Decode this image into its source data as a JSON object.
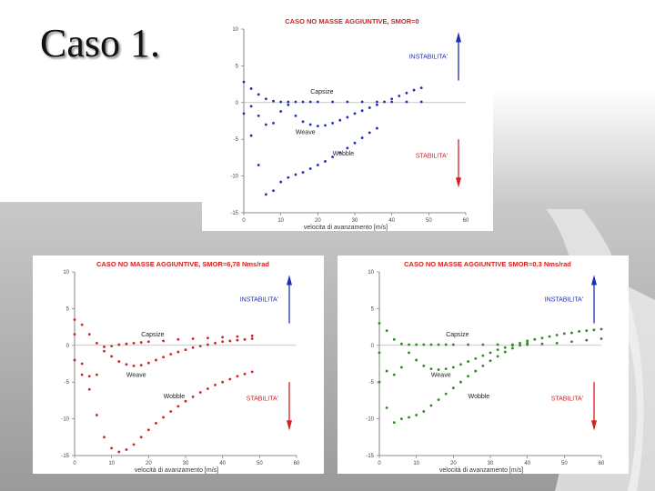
{
  "slide": {
    "title": "Caso 1."
  },
  "chart_data": [
    {
      "type": "scatter",
      "title": "CASO NO MASSE AGGIUNTIVE, SMOR=0",
      "xlabel": "velocita di avanzamento [m/s]",
      "xlim": [
        0,
        60
      ],
      "ylim": [
        -15,
        10
      ],
      "xticks": [
        0,
        10,
        20,
        30,
        40,
        50,
        60
      ],
      "yticks": [
        10,
        5,
        0,
        -5,
        -10,
        -15
      ],
      "color": "#1f2fb0",
      "annotations": {
        "unstable": "INSTABILITA'",
        "stable": "STABILITA'"
      },
      "series": [
        {
          "name": "Capsize",
          "x": [
            0,
            2,
            4,
            6,
            8,
            10,
            12,
            14,
            16,
            18,
            20,
            24,
            28,
            32,
            36,
            40,
            44,
            48
          ],
          "y": [
            2.8,
            1.9,
            1.1,
            0.5,
            0.2,
            0.1,
            0.1,
            0.1,
            0.1,
            0.1,
            0.1,
            0.1,
            0.1,
            0.1,
            0.1,
            0.1,
            0.1,
            0.1
          ]
        },
        {
          "name": "Weave",
          "x": [
            2,
            4,
            6,
            8,
            10,
            12,
            14,
            16,
            18,
            20,
            22,
            24,
            26,
            28,
            30,
            32,
            34,
            36,
            38,
            40,
            42,
            44,
            46,
            48
          ],
          "y": [
            -0.5,
            -1.8,
            -3.0,
            -2.8,
            -1.2,
            -0.3,
            -1.8,
            -2.6,
            -3.0,
            -3.2,
            -3.1,
            -2.8,
            -2.4,
            -2.0,
            -1.5,
            -1.1,
            -0.7,
            -0.3,
            0.1,
            0.5,
            0.9,
            1.3,
            1.7,
            2.0
          ]
        },
        {
          "name": "Wobble",
          "x": [
            0,
            2,
            4,
            6,
            8,
            10,
            12,
            14,
            16,
            18,
            20,
            22,
            24,
            26,
            28,
            30,
            32,
            34,
            36
          ],
          "y": [
            -1.5,
            -4.5,
            -8.5,
            -12.5,
            -12,
            -10.8,
            -10.2,
            -9.8,
            -9.5,
            -9.0,
            -8.5,
            -8.0,
            -7.4,
            -6.8,
            -6.2,
            -5.5,
            -4.8,
            -4.1,
            -3.5
          ]
        }
      ],
      "labels": {
        "capsize": "Capsize",
        "weave": "Weave",
        "wobble": "Wobble"
      }
    },
    {
      "type": "scatter",
      "title": "CASO NO MASSE AGGIUNTIVE, SMOR=6,78 Nms/rad",
      "xlabel": "velocità di avanzamento [m/s]",
      "xlim": [
        0,
        60
      ],
      "ylim": [
        -15,
        10
      ],
      "xticks": [
        0,
        10,
        20,
        30,
        40,
        50,
        60
      ],
      "yticks": [
        10,
        5,
        0,
        -5,
        -10,
        -15
      ],
      "color": "#d42020",
      "annotations": {
        "unstable": "INSTABILITA'",
        "stable": "STABILITA'"
      },
      "series": [
        {
          "name": "Capsize",
          "x": [
            0,
            2,
            4,
            6,
            8,
            10,
            12,
            14,
            16,
            18,
            20,
            24,
            28,
            32,
            36,
            40,
            44,
            48
          ],
          "y": [
            3.5,
            2.8,
            1.5,
            0.3,
            -0.2,
            -0.1,
            0.1,
            0.2,
            0.3,
            0.4,
            0.5,
            0.6,
            0.8,
            0.9,
            1.0,
            1.1,
            1.2,
            1.3
          ]
        },
        {
          "name": "Weave",
          "x": [
            0,
            2,
            4,
            6,
            8,
            10,
            12,
            14,
            16,
            18,
            20,
            22,
            24,
            26,
            28,
            30,
            32,
            34,
            36,
            38,
            40,
            42,
            44,
            46,
            48
          ],
          "y": [
            -2.0,
            -4.0,
            -4.2,
            -4.0,
            -0.8,
            -1.5,
            -2.2,
            -2.6,
            -2.8,
            -2.7,
            -2.4,
            -2.0,
            -1.6,
            -1.2,
            -0.9,
            -0.6,
            -0.3,
            -0.1,
            0.1,
            0.3,
            0.5,
            0.6,
            0.7,
            0.8,
            0.9
          ]
        },
        {
          "name": "Wobble",
          "x": [
            0,
            2,
            4,
            6,
            8,
            10,
            12,
            14,
            16,
            18,
            20,
            22,
            24,
            26,
            28,
            30,
            32,
            34,
            36,
            38,
            40,
            42,
            44,
            46,
            48
          ],
          "y": [
            1.5,
            -2.5,
            -6.0,
            -9.5,
            -12.5,
            -14.0,
            -14.5,
            -14.2,
            -13.5,
            -12.5,
            -11.5,
            -10.6,
            -9.8,
            -9.0,
            -8.3,
            -7.6,
            -7.0,
            -6.4,
            -5.9,
            -5.4,
            -5.0,
            -4.6,
            -4.2,
            -3.9,
            -3.6
          ]
        }
      ],
      "labels": {
        "capsize": "Capsize",
        "weave": "Weave",
        "wobble": "Wobble"
      }
    },
    {
      "type": "scatter",
      "title": "CASO NO MASSE AGGIUNTIVE SMOR=0.3 Nms/rad",
      "xlabel": "velocità di avanzamento [m/s]",
      "xlim": [
        0,
        60
      ],
      "ylim": [
        -15,
        10
      ],
      "xticks": [
        0,
        10,
        20,
        30,
        40,
        50,
        60
      ],
      "yticks": [
        10,
        5,
        0,
        -5,
        -10,
        -15
      ],
      "color": "#2a8a1c",
      "annotations": {
        "unstable": "INSTABILITA'",
        "stable": "STABILITA'"
      },
      "series": [
        {
          "name": "Capsize",
          "x": [
            0,
            2,
            4,
            6,
            8,
            10,
            12,
            14,
            16,
            18,
            20,
            24,
            28,
            32,
            36,
            40,
            44,
            48,
            52,
            56,
            60
          ],
          "y": [
            3.0,
            2.0,
            0.8,
            0.2,
            0.1,
            0.1,
            0.1,
            0.1,
            0.1,
            0.1,
            0.1,
            0.1,
            0.1,
            0.1,
            0.1,
            0.1,
            0.2,
            0.3,
            0.5,
            0.7,
            0.9
          ]
        },
        {
          "name": "Weave",
          "x": [
            0,
            2,
            4,
            6,
            8,
            10,
            12,
            14,
            16,
            18,
            20,
            22,
            24,
            26,
            28,
            30,
            32,
            34,
            36,
            38,
            40,
            42,
            44,
            46,
            48,
            50,
            52,
            54,
            56,
            58,
            60
          ],
          "y": [
            -1.0,
            -3.5,
            -4.0,
            -3.0,
            -1.0,
            -2.0,
            -2.8,
            -3.2,
            -3.3,
            -3.2,
            -3.0,
            -2.6,
            -2.2,
            -1.8,
            -1.4,
            -1.0,
            -0.6,
            -0.3,
            0.0,
            0.3,
            0.6,
            0.8,
            1.0,
            1.2,
            1.4,
            1.6,
            1.7,
            1.9,
            2.0,
            2.1,
            2.2
          ]
        },
        {
          "name": "Wobble",
          "x": [
            0,
            2,
            4,
            6,
            8,
            10,
            12,
            14,
            16,
            18,
            20,
            22,
            24,
            26,
            28,
            30,
            32,
            34,
            36,
            38,
            40
          ],
          "y": [
            -5.0,
            -8.5,
            -10.5,
            -10.0,
            -9.8,
            -9.5,
            -9.0,
            -8.2,
            -7.4,
            -6.6,
            -5.8,
            -5.0,
            -4.2,
            -3.5,
            -2.8,
            -2.1,
            -1.5,
            -0.9,
            -0.4,
            0.0,
            0.3
          ]
        }
      ],
      "labels": {
        "capsize": "Capsize",
        "weave": "Weave",
        "wobble": "Wobble"
      }
    }
  ]
}
